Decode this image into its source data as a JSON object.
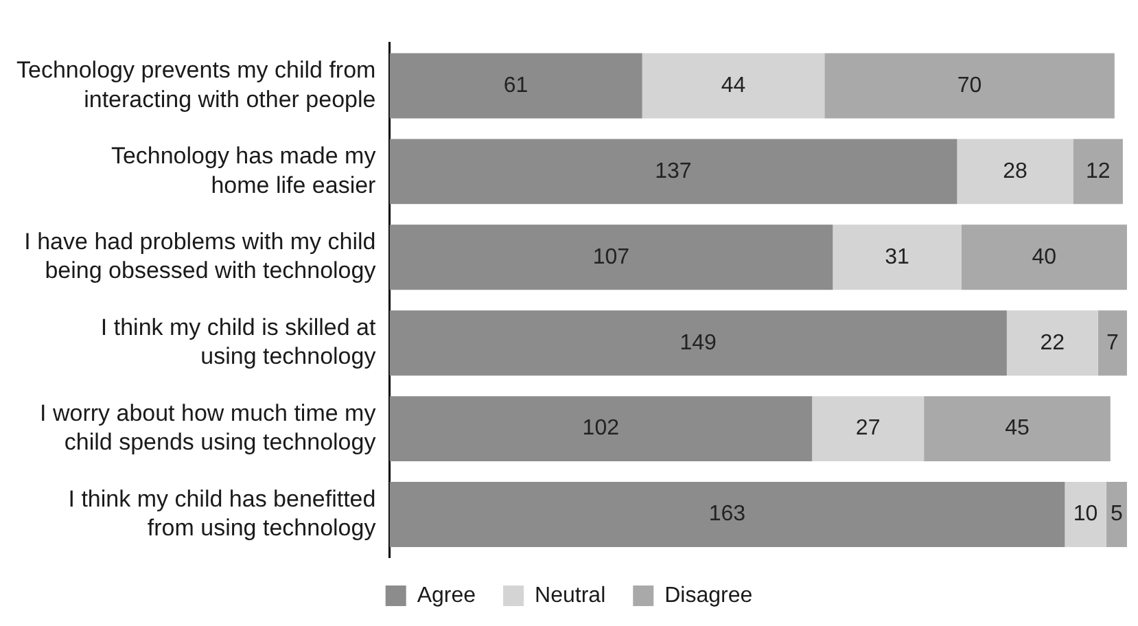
{
  "chart_data": {
    "type": "bar",
    "orientation": "horizontal",
    "stacked": true,
    "data_labels": true,
    "legend": "bottom",
    "grid": false,
    "tick_labels": "y",
    "categories": [
      "Technology prevents my child from\ninteracting with other people",
      "Technology has made my\nhome life easier",
      "I have had problems with my child\nbeing obsessed with technology",
      "I think my child is skilled at\nusing technology",
      "I worry about how much time my\nchild spends using technology",
      "I think my child has benefitted\nfrom using technology"
    ],
    "series": [
      {
        "name": "Agree",
        "color": "#8c8c8c",
        "values": [
          61,
          137,
          107,
          149,
          102,
          163
        ]
      },
      {
        "name": "Neutral",
        "color": "#d4d4d4",
        "values": [
          44,
          28,
          31,
          22,
          27,
          10
        ]
      },
      {
        "name": "Disagree",
        "color": "#a9a9a9",
        "values": [
          70,
          12,
          40,
          7,
          45,
          5
        ]
      }
    ]
  }
}
